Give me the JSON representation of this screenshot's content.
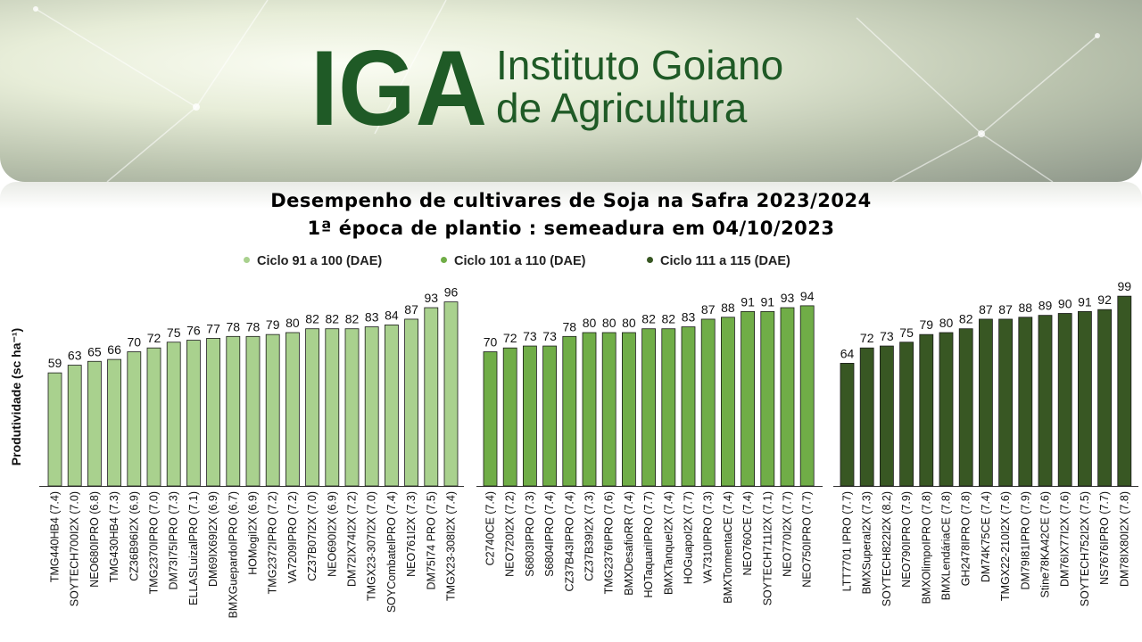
{
  "header": {
    "logo_text": "IGA",
    "brand_line1": "Instituto Goiano",
    "brand_line2": "de Agricultura"
  },
  "title_line1": "Desempenho de cultivares de Soja na Safra 2023/2024",
  "title_line2": "1ª época de plantio : semeadura em 04/10/2023",
  "colors": {
    "brand": "#1f5a26",
    "series": [
      "#a9d18e",
      "#70ad47",
      "#385723"
    ]
  },
  "chart_data": {
    "type": "bar",
    "ylabel": "Produtividade (sc ha⁻¹)",
    "ylim": [
      0,
      105
    ],
    "grid": false,
    "legend_position": "top",
    "legend": [
      "Ciclo 91 a 100 (DAE)",
      "Ciclo 101 a 110 (DAE)",
      "Ciclo 111 a 115 (DAE)"
    ],
    "groups": [
      {
        "series": "Ciclo 91 a 100 (DAE)",
        "categories": [
          "TMG440HB4 (7.4)",
          "SOYTECH700I2X (7.0)",
          "NEO680IPRO (6.8)",
          "TMG430HB4 (7.3)",
          "CZ36B96I2X (6.9)",
          "TMG2370IPRO (7.0)",
          "DM73I75IPRO (7.3)",
          "ELLASLuizalPRO (7.1)",
          "DM69IX69I2X (6.9)",
          "BMXGuepardoIPRO (6.7)",
          "HOMogiI2X (6.9)",
          "TMG2372IPRO (7.2)",
          "VA7209IPRO (7.2)",
          "CZ37B07I2X (7.0)",
          "NEO690I2X (6.9)",
          "DM72IX74I2X (7.2)",
          "TMGX23-307I2X (7.0)",
          "SOYCombatelPRO (7.4)",
          "NEO761I2X (7.3)",
          "DM75I74 PRO (7.5)",
          "TMGX23-308I2X (7.4)"
        ],
        "values": [
          59,
          63,
          65,
          66,
          70,
          72,
          75,
          76,
          77,
          78,
          78,
          79,
          80,
          82,
          82,
          82,
          83,
          84,
          87,
          93,
          96
        ]
      },
      {
        "series": "Ciclo 101 a 110 (DAE)",
        "categories": [
          "C2740CE (7.4)",
          "NEO720I2X (7.2)",
          "S6803IPRO (7.3)",
          "S6804IPRO (7.4)",
          "CZ37B43IPRO (7.4)",
          "CZ37B39I2X (7.3)",
          "TMG2376IPRO (7.6)",
          "BMXDesafioRR (7.4)",
          "HOTaquariIPRO (7.7)",
          "BMXTanqueI2X (7.4)",
          "HOGuapoI2X (7.7)",
          "VA7310IPRO (7.3)",
          "BMXTormentaCE (7.4)",
          "NEO760CE (7.4)",
          "SOYTECH711I2X (7.1)",
          "NEO770I2X (7.7)",
          "NEO750IPRO (7.7)"
        ],
        "values": [
          70,
          72,
          73,
          73,
          78,
          80,
          80,
          80,
          82,
          82,
          83,
          87,
          88,
          91,
          91,
          93,
          94
        ]
      },
      {
        "series": "Ciclo 111 a 115 (DAE)",
        "categories": [
          "LTT7701 IPRO (7.7)",
          "BMXSuperaI2X (7.3)",
          "SOYTECH822I2X (8.2)",
          "NEO790IPRO (7.9)",
          "BMXOlimpoIPRO (7.8)",
          "BMXLendáriaCE (7.8)",
          "GH2478IPRO (7.8)",
          "DM74K75CE (7.4)",
          "TMGX22-210I2X (7.6)",
          "DM79I81IPRO (7.9)",
          "Stine78KA42CE (7.6)",
          "DM76IX77I2X (7.6)",
          "SOYTECH752I2X (7.5)",
          "NS7676IPRO (7.7)",
          "DM78IX80I2X (7.8)"
        ],
        "values": [
          64,
          72,
          73,
          75,
          79,
          80,
          82,
          87,
          87,
          88,
          89,
          90,
          91,
          92,
          99
        ]
      }
    ]
  }
}
